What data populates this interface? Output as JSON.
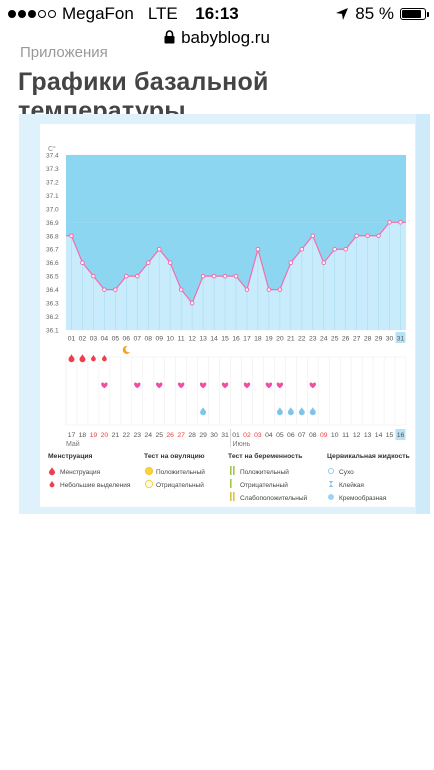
{
  "status": {
    "carrier": "MegaFon",
    "network": "LTE",
    "time": "16:13",
    "battery": "85 %",
    "battery_level": 0.85
  },
  "browser": {
    "url": "babyblog.ru"
  },
  "breadcrumb": "Приложения",
  "title": "Графики базальной температуры",
  "chart_data": {
    "type": "line",
    "ylabel": "C°",
    "ylim": [
      36.1,
      37.4
    ],
    "yticks": [
      "37.4",
      "37.3",
      "37.2",
      "37.1",
      "37.0",
      "36.9",
      "36.8",
      "36.7",
      "36.6",
      "36.5",
      "36.4",
      "36.3",
      "36.2",
      "36.1"
    ],
    "x": [
      "01",
      "02",
      "03",
      "04",
      "05",
      "06",
      "07",
      "08",
      "09",
      "10",
      "11",
      "12",
      "13",
      "14",
      "15",
      "16",
      "17",
      "18",
      "19",
      "20",
      "21",
      "22",
      "23",
      "24",
      "25",
      "26",
      "27",
      "28",
      "29",
      "30",
      "31"
    ],
    "series": [
      {
        "values": [
          36.8,
          36.6,
          36.5,
          36.4,
          36.4,
          36.5,
          36.5,
          36.6,
          36.7,
          36.6,
          36.4,
          36.3,
          36.5,
          36.5,
          36.5,
          36.5,
          36.4,
          36.7,
          36.4,
          36.4,
          36.6,
          36.7,
          36.8,
          36.6,
          36.7,
          36.7,
          36.8,
          36.8,
          36.8,
          36.9,
          36.9
        ]
      }
    ],
    "highlight_day": "31",
    "highlight_date": "16",
    "dates": [
      "17",
      "18",
      "19",
      "20",
      "21",
      "22",
      "23",
      "24",
      "25",
      "26",
      "27",
      "28",
      "29",
      "30",
      "31",
      "01",
      "02",
      "03",
      "04",
      "05",
      "06",
      "07",
      "08",
      "09",
      "10",
      "11",
      "12",
      "13",
      "14",
      "15",
      "16"
    ],
    "weekend_dates": [
      "19",
      "20",
      "26",
      "27",
      "02",
      "03",
      "09"
    ],
    "months": [
      "Май",
      "Июнь"
    ],
    "menstruation_days": [
      "01",
      "02",
      "03",
      "04"
    ],
    "small_discharge_days": [
      "03",
      "04"
    ],
    "intercourse_days": [
      "04",
      "07",
      "09",
      "11",
      "13",
      "15",
      "17",
      "19",
      "20",
      "23"
    ],
    "egg_white_days": [
      "13",
      "20",
      "21",
      "22",
      "23"
    ],
    "lunar_day": "06"
  },
  "legend": {
    "menstruation_title": "Менструация",
    "menstruation_items": [
      "Менструация",
      "Небольшие выделения"
    ],
    "ovulation_title": "Тест на овуляцию",
    "ovulation_items": [
      "Положительный",
      "Отрицательный"
    ],
    "pregnancy_title": "Тест на беременность",
    "pregnancy_items": [
      "Положительный",
      "Отрицательный",
      "Слабоположительный"
    ],
    "fluid_title": "Цервикальная жидкость",
    "fluid_items": [
      "Сухо",
      "Клейкая",
      "Кремообразная",
      "Водянистая",
      "Яичный белок"
    ],
    "other_items": [
      "Половой акт",
      "Прием лекарств",
      "Лунный календарь"
    ]
  },
  "colors": {
    "coverline_fill": "#8dd6f1",
    "area_fill": "#c8ecfb",
    "line": "#f26dae",
    "point_fill": "#ffffff",
    "heart": "#ee4fa4",
    "drop": "#ef3e4a",
    "drop_fluid": "#7fc4ea",
    "moon": "#f5a01a",
    "weekend": "#e8403f",
    "highlight_box": "#b6e2f6"
  }
}
